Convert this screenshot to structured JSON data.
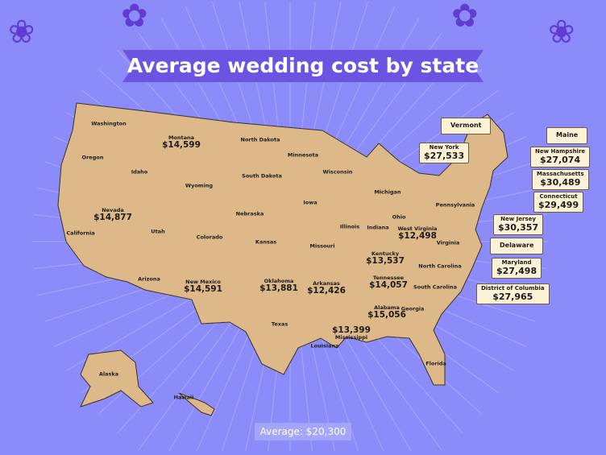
{
  "title": "Average wedding cost by state",
  "average_label": "Average: $20,300",
  "colors": {
    "background": "#8b8cf9",
    "banner": "#6a55e3",
    "land": "#ddb98a",
    "callout": "#fdf1d6"
  },
  "states": [
    {
      "name": "Washington",
      "cost": ""
    },
    {
      "name": "Oregon",
      "cost": ""
    },
    {
      "name": "California",
      "cost": ""
    },
    {
      "name": "Idaho",
      "cost": ""
    },
    {
      "name": "Montana",
      "cost": "$14,599"
    },
    {
      "name": "Nevada",
      "cost": "$14,877"
    },
    {
      "name": "Utah",
      "cost": ""
    },
    {
      "name": "Arizona",
      "cost": ""
    },
    {
      "name": "Wyoming",
      "cost": ""
    },
    {
      "name": "Colorado",
      "cost": ""
    },
    {
      "name": "New Mexico",
      "cost": "$14,591"
    },
    {
      "name": "North Dakota",
      "cost": ""
    },
    {
      "name": "South Dakota",
      "cost": ""
    },
    {
      "name": "Nebraska",
      "cost": ""
    },
    {
      "name": "Kansas",
      "cost": ""
    },
    {
      "name": "Oklahoma",
      "cost": "$13,881"
    },
    {
      "name": "Texas",
      "cost": ""
    },
    {
      "name": "Minnesota",
      "cost": ""
    },
    {
      "name": "Iowa",
      "cost": ""
    },
    {
      "name": "Missouri",
      "cost": ""
    },
    {
      "name": "Arkansas",
      "cost": "$12,426"
    },
    {
      "name": "Louisiana",
      "cost": ""
    },
    {
      "name": "Wisconsin",
      "cost": ""
    },
    {
      "name": "Illinois",
      "cost": ""
    },
    {
      "name": "Michigan",
      "cost": ""
    },
    {
      "name": "Indiana",
      "cost": ""
    },
    {
      "name": "Ohio",
      "cost": ""
    },
    {
      "name": "Kentucky",
      "cost": "$13,537"
    },
    {
      "name": "Tennessee",
      "cost": "$14,057"
    },
    {
      "name": "Mississippi",
      "cost": "$13,399"
    },
    {
      "name": "Alabama",
      "cost": "$15,056"
    },
    {
      "name": "Georgia",
      "cost": ""
    },
    {
      "name": "Florida",
      "cost": ""
    },
    {
      "name": "South Carolina",
      "cost": ""
    },
    {
      "name": "North Carolina",
      "cost": ""
    },
    {
      "name": "Virginia",
      "cost": ""
    },
    {
      "name": "West Virginia",
      "cost": "$12,498"
    },
    {
      "name": "Pennsylvania",
      "cost": ""
    },
    {
      "name": "Alaska",
      "cost": ""
    },
    {
      "name": "Hawaii",
      "cost": ""
    }
  ],
  "callouts": [
    {
      "name": "Vermont",
      "cost": ""
    },
    {
      "name": "New York",
      "cost": "$27,533"
    },
    {
      "name": "Maine",
      "cost": ""
    },
    {
      "name": "New Hampshire",
      "cost": "$27,074"
    },
    {
      "name": "Massachusetts",
      "cost": "$30,489"
    },
    {
      "name": "Connecticut",
      "cost": "$29,499"
    },
    {
      "name": "New Jersey",
      "cost": "$30,357"
    },
    {
      "name": "Delaware",
      "cost": ""
    },
    {
      "name": "Maryland",
      "cost": "$27,498"
    },
    {
      "name": "District of Columbia",
      "cost": "$27,965"
    }
  ]
}
